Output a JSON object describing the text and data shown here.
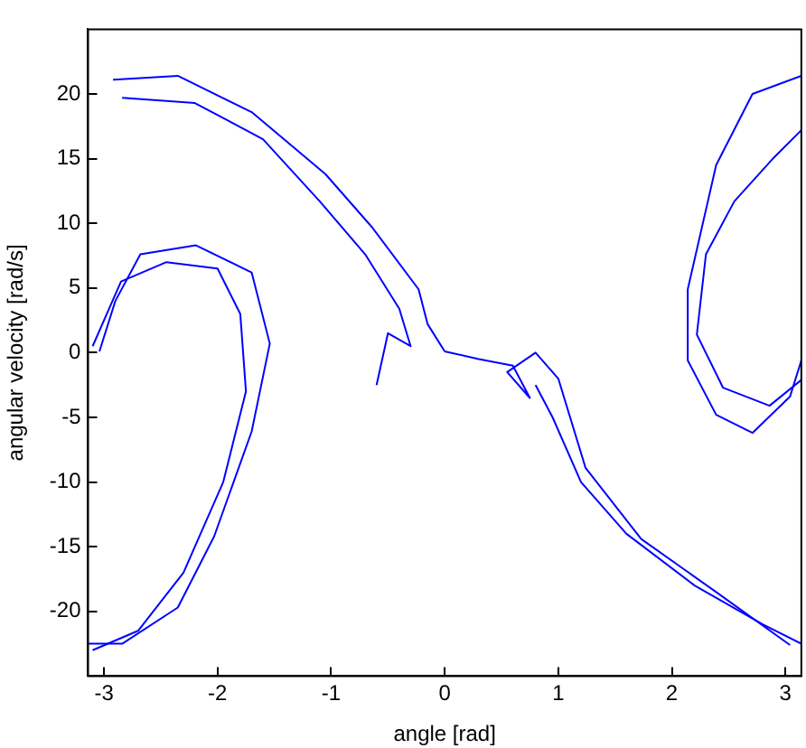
{
  "chart_data": {
    "type": "line",
    "xlabel": "angle [rad]",
    "ylabel": "angular velocity [rad/s]",
    "xlim": [
      -3.14,
      3.14
    ],
    "ylim": [
      -25,
      25
    ],
    "xticks": [
      -3,
      -2,
      -1,
      0,
      1,
      2,
      3
    ],
    "yticks": [
      -20,
      -15,
      -10,
      -5,
      0,
      5,
      10,
      15,
      20
    ],
    "grid": false,
    "legend": false,
    "marker": "none",
    "line_style": "solid",
    "series": [
      {
        "color": "#0000ff",
        "x": [
          -2.92,
          -2.35,
          -1.7,
          -1.05,
          -0.64,
          -0.23,
          -0.15,
          0
        ],
        "values": [
          21.1,
          21.4,
          18.6,
          13.8,
          9.7,
          4.9,
          2.2,
          0.1
        ]
      },
      {
        "color": "#0000ff",
        "x": [
          -2.84,
          -2.2,
          -1.6,
          -1.1,
          -0.7,
          -0.4,
          -0.3,
          -0.5,
          -0.6
        ],
        "values": [
          19.7,
          19.3,
          16.5,
          11.7,
          7.6,
          3.4,
          0.5,
          1.5,
          -2.5
        ]
      },
      {
        "color": "#0000ff",
        "x": [
          -3.04,
          -2.9,
          -2.68,
          -2.19,
          -1.7,
          -1.54,
          -1.7,
          -2.03,
          -2.35,
          -2.84,
          -3.14
        ],
        "values": [
          0.1,
          4,
          7.6,
          8.3,
          6.2,
          0.7,
          -6.1,
          -14.2,
          -19.7,
          -22.5,
          -22.5
        ]
      },
      {
        "color": "#0000ff",
        "x": [
          -3.1,
          -2.85,
          -2.45,
          -2.0,
          -1.8,
          -1.75,
          -1.95,
          -2.3,
          -2.7,
          -3.1
        ],
        "values": [
          0.5,
          5.5,
          7,
          6.5,
          3,
          -3,
          -10,
          -17,
          -21.5,
          -23
        ]
      },
      {
        "color": "#0000ff",
        "x": [
          0,
          0.3,
          0.6,
          0.75,
          0.55,
          0.8,
          1.0,
          1.24,
          1.73,
          2.39,
          3.04
        ],
        "values": [
          0.1,
          -0.5,
          -1,
          -3.5,
          -1.5,
          0,
          -2,
          -8.9,
          -14.4,
          -18.5,
          -22.6
        ]
      },
      {
        "color": "#0000ff",
        "x": [
          0.8,
          0.95,
          1.2,
          1.6,
          2.2,
          2.8,
          3.14
        ],
        "values": [
          -2.5,
          -5,
          -10,
          -14,
          -18,
          -21,
          -22.5
        ]
      },
      {
        "color": "#0000ff",
        "x": [
          3.14,
          2.71,
          2.39,
          2.14,
          2.14,
          2.39,
          2.71,
          3.04,
          3.14
        ],
        "values": [
          21.4,
          20,
          14.5,
          4.9,
          -0.6,
          -4.8,
          -6.2,
          -3.4,
          -0.6
        ]
      },
      {
        "color": "#0000ff",
        "x": [
          3.14,
          2.9,
          2.55,
          2.3,
          2.22,
          2.45,
          2.86,
          3.14
        ],
        "values": [
          17.2,
          15.1,
          11.7,
          7.6,
          1.4,
          -2.7,
          -4.1,
          -2.1
        ]
      }
    ]
  }
}
